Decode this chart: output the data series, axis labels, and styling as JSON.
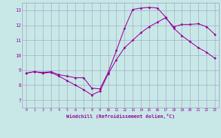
{
  "xlabel": "Windchill (Refroidissement éolien,°C)",
  "bg_color": "#c8e8e8",
  "grid_color": "#9999bb",
  "line_color": "#990099",
  "xlim": [
    -0.5,
    23.5
  ],
  "ylim": [
    6.5,
    13.5
  ],
  "xticks": [
    0,
    1,
    2,
    3,
    4,
    5,
    6,
    7,
    8,
    9,
    10,
    11,
    12,
    13,
    14,
    15,
    16,
    17,
    18,
    19,
    20,
    21,
    22,
    23
  ],
  "yticks": [
    7,
    8,
    9,
    10,
    11,
    12,
    13
  ],
  "curve1_x": [
    0,
    1,
    2,
    3,
    4,
    5,
    6,
    7,
    8,
    9,
    10,
    11,
    12,
    13,
    14,
    15,
    16,
    17,
    18,
    19,
    20,
    21,
    22,
    23
  ],
  "curve1_y": [
    8.8,
    8.9,
    8.85,
    8.9,
    8.7,
    8.6,
    8.5,
    8.5,
    7.8,
    7.75,
    8.85,
    10.3,
    11.8,
    13.05,
    13.15,
    13.2,
    13.15,
    12.55,
    11.8,
    11.3,
    10.9,
    10.5,
    10.2,
    9.8
  ],
  "curve2_x": [
    0,
    1,
    2,
    3,
    4,
    5,
    6,
    7,
    8,
    9,
    10,
    11,
    12,
    13,
    14,
    15,
    16,
    17,
    18,
    19,
    20,
    21,
    22,
    23
  ],
  "curve2_y": [
    8.8,
    8.9,
    8.8,
    8.85,
    8.6,
    8.3,
    8.0,
    7.7,
    7.35,
    7.6,
    8.75,
    9.7,
    10.5,
    11.0,
    11.5,
    11.9,
    12.2,
    12.5,
    11.9,
    12.05,
    12.05,
    12.1,
    11.9,
    11.4
  ]
}
